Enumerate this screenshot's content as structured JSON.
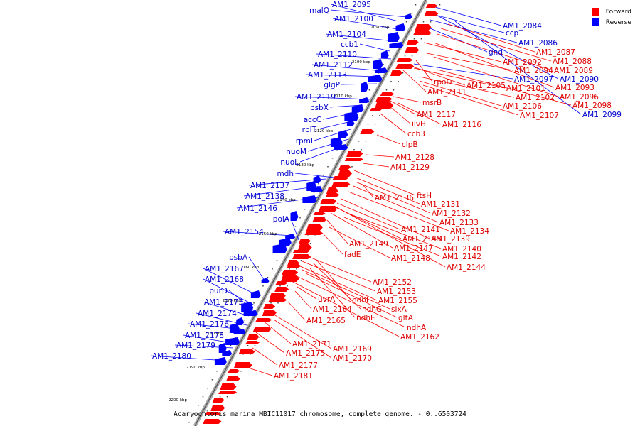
{
  "caption": "Acaryochloris marina MBIC11017 chromosome, complete genome. - 0..6503724",
  "legend": [
    {
      "label": "Forward",
      "color": "#ff0000"
    },
    {
      "label": "Reverse",
      "color": "#0000ff"
    }
  ],
  "colors": {
    "forward": "#ff0000",
    "reverse": "#0000ff",
    "forward_text": "#dd0000",
    "reverse_text": "#0000cc",
    "backbone": "#888888"
  },
  "kbp_ticks": [
    "2090 kbp",
    "2100 kbp",
    "2110 kbp",
    "2120 kbp",
    "2130 kbp",
    "2140 kbp",
    "2150 kbp",
    "2160 kbp",
    "2170 kbp",
    "2180 kbp",
    "2190 kbp",
    "2200 kbp"
  ],
  "reverse_labels": [
    "AM1_2095",
    "malQ",
    "AM1_2100",
    "AM1_2104",
    "ccb1",
    "AM1_2110",
    "AM1_2112",
    "AM1_2113",
    "glgP",
    "AM1_2119",
    "psbX",
    "accC",
    "rplT",
    "rpmI",
    "nuoM",
    "nuoL",
    "mdh",
    "AM1_2137",
    "AM1_2138",
    "AM1_2146",
    "polA",
    "AM1_2154",
    "psbA",
    "AM1_2167",
    "AM1_2168",
    "purD",
    "AM1_2173",
    "AM1_2174",
    "AM1_2176",
    "AM1_2178",
    "AM1_2179",
    "AM1_2180",
    "AM1_2084",
    "ccp",
    "AM1_2086",
    "gnd",
    "AM1_2097",
    "AM1_2090",
    "AM1_2099"
  ],
  "forward_labels": [
    "AM1_2087",
    "AM1_2088",
    "AM1_2092",
    "AM1_2089",
    "AM1_2094",
    "rpoD",
    "AM1_2105",
    "AM1_2101",
    "AM1_2093",
    "AM1_2111",
    "AM1_2102",
    "AM1_2096",
    "msrB",
    "AM1_2106",
    "AM1_2098",
    "AM1_2107",
    "AM1_2117",
    "ilvH",
    "AM1_2116",
    "ccb3",
    "clpB",
    "AM1_2128",
    "AM1_2129",
    "ftsH",
    "AM1_2136",
    "AM1_2131",
    "AM1_2132",
    "AM1_2133",
    "AM1_2134",
    "AM1_2141",
    "AM1_2145",
    "AM1_2139",
    "AM1_2149",
    "AM1_2140",
    "AM1_2147",
    "fadE",
    "AM1_2142",
    "AM1_2148",
    "AM1_2144",
    "AM1_2152",
    "AM1_2153",
    "uvrA",
    "ndhI",
    "AM1_2155",
    "AM1_2164",
    "ndhG",
    "sixA",
    "gltA",
    "ndhE",
    "AM1_2165",
    "ndhA",
    "AM1_2162",
    "AM1_2171",
    "AM1_2169",
    "AM1_2175",
    "AM1_2170",
    "AM1_2177",
    "AM1_2181"
  ]
}
